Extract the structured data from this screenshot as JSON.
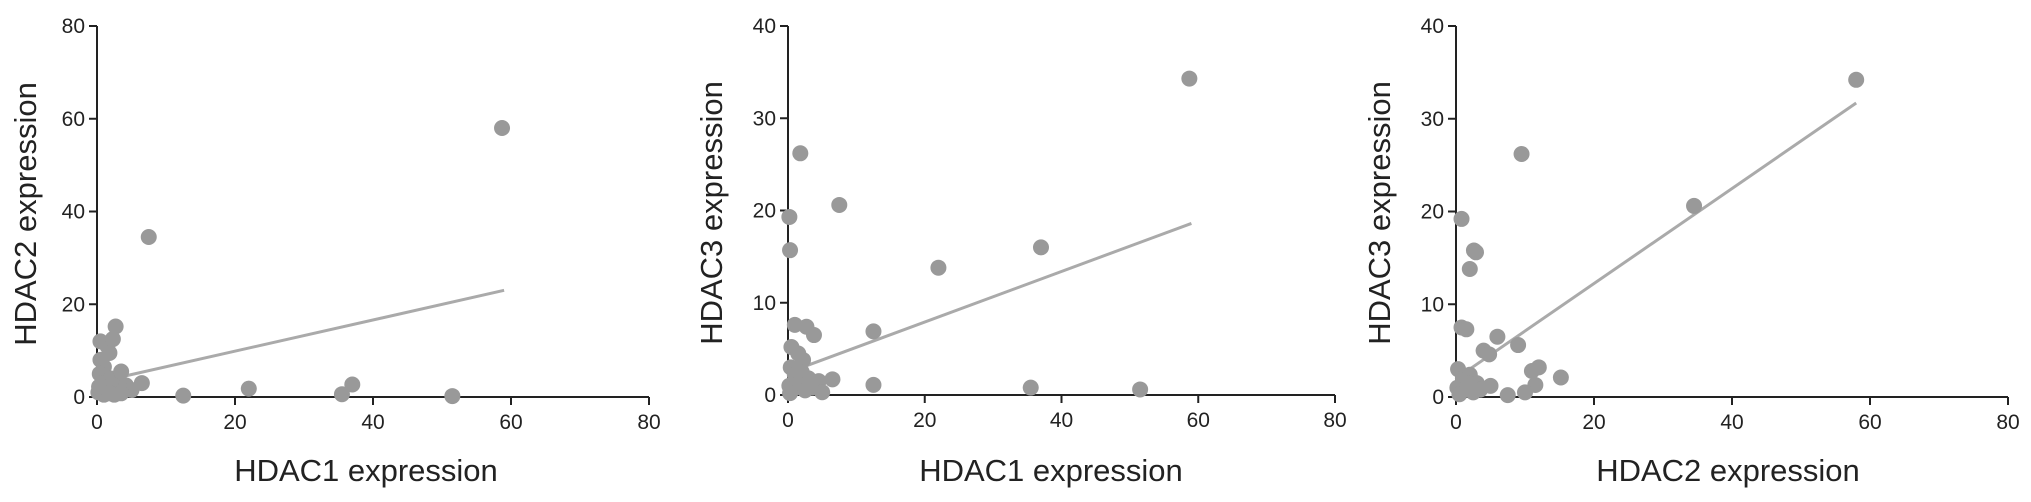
{
  "style": {
    "point_color": "#999999",
    "line_color": "#aaaaaa",
    "axis_color": "#222222"
  },
  "chart_data": [
    {
      "type": "scatter",
      "title": "",
      "xlabel": "HDAC1 expression",
      "ylabel": "HDAC2 expression",
      "xlim": [
        0,
        80
      ],
      "ylim": [
        0,
        80
      ],
      "xticks": [
        "0",
        "20",
        "40",
        "60",
        "80"
      ],
      "yticks": [
        "0",
        "20",
        "40",
        "60",
        "80"
      ],
      "grid": false,
      "trendline": {
        "x1": 1,
        "y1": 3.5,
        "x2": 59,
        "y2": 23
      },
      "points": [
        [
          58.7,
          58
        ],
        [
          7.5,
          34.5
        ],
        [
          2.7,
          15.2
        ],
        [
          0.5,
          12
        ],
        [
          1.5,
          11
        ],
        [
          2.3,
          12.5
        ],
        [
          1.8,
          9.5
        ],
        [
          0.5,
          8
        ],
        [
          1,
          6.5
        ],
        [
          0.4,
          5
        ],
        [
          2,
          4
        ],
        [
          3,
          3.5
        ],
        [
          3.5,
          5.5
        ],
        [
          4.2,
          2.5
        ],
        [
          5,
          1.5
        ],
        [
          6.5,
          3
        ],
        [
          0.2,
          1
        ],
        [
          1,
          0.5
        ],
        [
          1.5,
          1.5
        ],
        [
          2.5,
          0.5
        ],
        [
          3.5,
          0.8
        ],
        [
          12.5,
          0.3
        ],
        [
          22,
          1.8
        ],
        [
          35.5,
          0.6
        ],
        [
          37,
          2.7
        ],
        [
          51.5,
          0.2
        ],
        [
          0.3,
          2.2
        ],
        [
          0.8,
          3
        ],
        [
          1.2,
          2
        ],
        [
          1.8,
          0.8
        ]
      ]
    },
    {
      "type": "scatter",
      "title": "",
      "xlabel": "HDAC1 expression",
      "ylabel": "HDAC3 expression",
      "xlim": [
        0,
        80
      ],
      "ylim": [
        0,
        40
      ],
      "xticks": [
        "0",
        "20",
        "40",
        "60",
        "80"
      ],
      "yticks": [
        "0",
        "10",
        "20",
        "30",
        "40"
      ],
      "grid": false,
      "trendline": {
        "x1": 1,
        "y1": 2.7,
        "x2": 59,
        "y2": 18.6
      },
      "points": [
        [
          58.7,
          34.3
        ],
        [
          1.8,
          26.2
        ],
        [
          7.5,
          20.6
        ],
        [
          0.2,
          19.3
        ],
        [
          0.3,
          15.7
        ],
        [
          37,
          16
        ],
        [
          22,
          13.8
        ],
        [
          12.5,
          6.9
        ],
        [
          1,
          7.6
        ],
        [
          2.7,
          7.4
        ],
        [
          3.8,
          6.5
        ],
        [
          0.5,
          5.2
        ],
        [
          1.5,
          4.5
        ],
        [
          2.2,
          3.8
        ],
        [
          0.4,
          3
        ],
        [
          1,
          2.2
        ],
        [
          2,
          2.5
        ],
        [
          3,
          1.8
        ],
        [
          4.5,
          1.5
        ],
        [
          6.5,
          1.7
        ],
        [
          0.2,
          1
        ],
        [
          0.8,
          0.7
        ],
        [
          1.5,
          1.2
        ],
        [
          2.5,
          0.5
        ],
        [
          3.5,
          0.8
        ],
        [
          5,
          0.3
        ],
        [
          12.5,
          1.1
        ],
        [
          35.5,
          0.8
        ],
        [
          51.5,
          0.6
        ],
        [
          0.3,
          0.2
        ]
      ]
    },
    {
      "type": "scatter",
      "title": "",
      "xlabel": "HDAC2 expression",
      "ylabel": "HDAC3 expression",
      "xlim": [
        0,
        80
      ],
      "ylim": [
        0,
        40
      ],
      "xticks": [
        "0",
        "20",
        "40",
        "60",
        "80"
      ],
      "yticks": [
        "0",
        "10",
        "20",
        "30",
        "40"
      ],
      "grid": false,
      "trendline": {
        "x1": 1,
        "y1": 2.5,
        "x2": 58,
        "y2": 31.7
      },
      "points": [
        [
          58,
          34.2
        ],
        [
          9.5,
          26.2
        ],
        [
          34.5,
          20.6
        ],
        [
          0.8,
          19.2
        ],
        [
          2.6,
          15.8
        ],
        [
          2.9,
          15.6
        ],
        [
          2,
          13.8
        ],
        [
          0.8,
          7.5
        ],
        [
          1.5,
          7.3
        ],
        [
          6,
          6.5
        ],
        [
          9,
          5.6
        ],
        [
          4,
          5
        ],
        [
          4.8,
          4.6
        ],
        [
          12,
          3.2
        ],
        [
          11,
          2.8
        ],
        [
          15.2,
          2.1
        ],
        [
          11.5,
          1.3
        ],
        [
          0.3,
          3
        ],
        [
          1,
          2
        ],
        [
          2,
          2.4
        ],
        [
          3,
          1.5
        ],
        [
          5,
          1.2
        ],
        [
          0.2,
          1
        ],
        [
          1.2,
          0.8
        ],
        [
          2.5,
          0.5
        ],
        [
          3.5,
          0.8
        ],
        [
          7.5,
          0.2
        ],
        [
          10,
          0.5
        ],
        [
          0.5,
          0.3
        ],
        [
          1.8,
          1.5
        ]
      ]
    }
  ]
}
